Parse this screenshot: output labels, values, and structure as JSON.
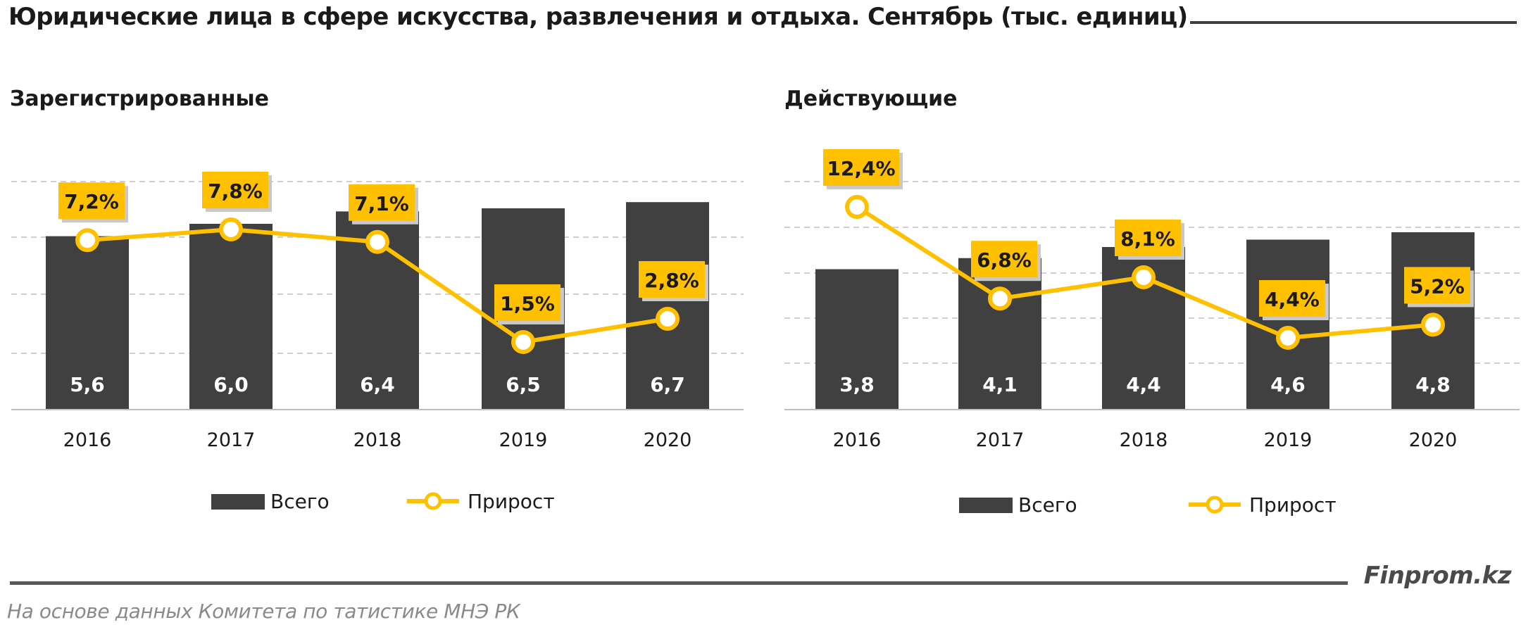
{
  "header": {
    "title": "Юридические лица в сфере искусства, развлечения и отдыха. Сентябрь (тыс. единиц)"
  },
  "footer": {
    "brand": "Finprom.kz",
    "source": "На основе данных  Комитета по татистике МНЭ РК"
  },
  "colors": {
    "bar": "#404040",
    "line": "#FFC000",
    "grid": "#d0d0d0",
    "axis": "#bfbfbf",
    "bar_label": "#ffffff",
    "text": "#1a1a1a"
  },
  "chart_data": [
    {
      "type": "bar",
      "subtitle": "Зарегистрированные",
      "categories": [
        "2016",
        "2017",
        "2018",
        "2019",
        "2020"
      ],
      "series": [
        {
          "name": "Всего",
          "type": "bar",
          "values": [
            5.6,
            6.0,
            6.4,
            6.5,
            6.7
          ],
          "labels": [
            "5,6",
            "6,0",
            "6,4",
            "6,5",
            "6,7"
          ]
        },
        {
          "name": "Прирост",
          "type": "line",
          "values": [
            7.2,
            7.8,
            7.1,
            1.5,
            2.8
          ],
          "labels": [
            "7,2%",
            "7,8%",
            "7,1%",
            "1,5%",
            "2,8%"
          ]
        }
      ],
      "legend_position": "bottom",
      "grid": true
    },
    {
      "type": "bar",
      "subtitle": "Действующие",
      "categories": [
        "2016",
        "2017",
        "2018",
        "2019",
        "2020"
      ],
      "series": [
        {
          "name": "Всего",
          "type": "bar",
          "values": [
            3.8,
            4.1,
            4.4,
            4.6,
            4.8
          ],
          "labels": [
            "3,8",
            "4,1",
            "4,4",
            "4,6",
            "4,8"
          ]
        },
        {
          "name": "Прирост",
          "type": "line",
          "values": [
            12.4,
            6.8,
            8.1,
            4.4,
            5.2
          ],
          "labels": [
            "12,4%",
            "6,8%",
            "8,1%",
            "4,4%",
            "5,2%"
          ]
        }
      ],
      "legend_position": "bottom",
      "grid": true
    }
  ]
}
